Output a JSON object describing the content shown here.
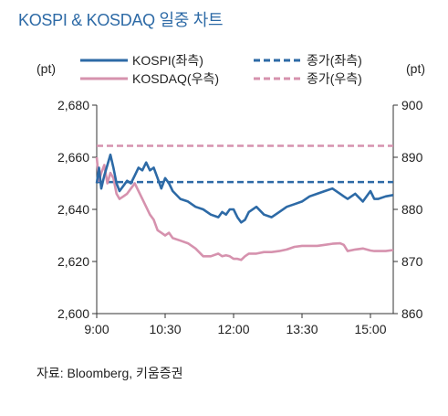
{
  "chart_data": {
    "type": "line",
    "title": "KOSPI & KOSDAQ 일중 차트",
    "left_axis": {
      "unit": "(pt)",
      "ticks": [
        "2,680",
        "2,660",
        "2,640",
        "2,620",
        "2,600"
      ],
      "ylim": [
        2600,
        2680
      ]
    },
    "right_axis": {
      "unit": "(pt)",
      "ticks": [
        "900",
        "890",
        "880",
        "870",
        "860"
      ],
      "ylim": [
        860,
        900
      ]
    },
    "x_ticks": [
      "9:00",
      "10:30",
      "12:00",
      "13:30",
      "15:00"
    ],
    "x_tick_values": [
      0,
      90,
      180,
      270,
      360
    ],
    "xlim": [
      0,
      390
    ],
    "legend": {
      "kospi": "KOSPI(좌측)",
      "kosdaq": "KOSDAQ(우측)",
      "kospi_close": "종가(좌측)",
      "kosdaq_close": "종가(우측)"
    },
    "colors": {
      "kospi": "#2d6aa6",
      "kosdaq": "#d692ae"
    },
    "series": [
      {
        "name": "KOSPI(좌측)",
        "axis": "left",
        "x": [
          0,
          3,
          6,
          10,
          14,
          18,
          22,
          26,
          30,
          35,
          40,
          45,
          50,
          55,
          60,
          65,
          70,
          75,
          80,
          85,
          90,
          95,
          100,
          110,
          120,
          130,
          140,
          150,
          160,
          165,
          170,
          175,
          180,
          185,
          190,
          195,
          200,
          210,
          220,
          230,
          240,
          250,
          260,
          270,
          280,
          290,
          300,
          310,
          320,
          325,
          330,
          340,
          350,
          360,
          365,
          370,
          380,
          390
        ],
        "values": [
          2650,
          2656,
          2648,
          2653,
          2657,
          2661,
          2656,
          2650,
          2647,
          2649,
          2651,
          2650,
          2653,
          2656,
          2655,
          2658,
          2655,
          2656,
          2652,
          2648,
          2652,
          2650,
          2647,
          2644,
          2643,
          2641,
          2640,
          2638,
          2637,
          2639,
          2638,
          2640,
          2640,
          2637,
          2635,
          2636,
          2639,
          2641,
          2638,
          2637,
          2639,
          2641,
          2642,
          2643,
          2645,
          2646,
          2647,
          2648,
          2646,
          2645,
          2644,
          2646,
          2643,
          2647,
          2644,
          2644,
          2645,
          2645.5
        ]
      },
      {
        "name": "KOSDAQ(우측)",
        "axis": "right",
        "x": [
          0,
          3,
          6,
          10,
          14,
          18,
          22,
          26,
          30,
          35,
          40,
          45,
          50,
          55,
          60,
          65,
          70,
          75,
          80,
          85,
          90,
          95,
          100,
          110,
          120,
          130,
          140,
          150,
          160,
          165,
          170,
          175,
          180,
          185,
          190,
          195,
          200,
          210,
          220,
          230,
          240,
          250,
          260,
          270,
          280,
          290,
          300,
          310,
          320,
          325,
          330,
          340,
          350,
          360,
          365,
          370,
          380,
          390
        ],
        "values": [
          890,
          885.5,
          887,
          888.5,
          885,
          887,
          886,
          883,
          882,
          882.5,
          883,
          884,
          885,
          883.5,
          882,
          880.5,
          879,
          878,
          876,
          875.5,
          875,
          875.5,
          874.5,
          874,
          873.5,
          872.5,
          871,
          871,
          871.5,
          871,
          871.2,
          871,
          870.5,
          870.5,
          870.3,
          871,
          871.5,
          871.5,
          871.8,
          871.8,
          872,
          872.3,
          872.8,
          873,
          873,
          873,
          873.2,
          873.4,
          873.5,
          873.2,
          872,
          872.3,
          872.5,
          872.1,
          872,
          872,
          872,
          872.2
        ]
      }
    ],
    "closes": [
      {
        "name": "종가(좌측)",
        "axis": "left",
        "value": 2650.5
      },
      {
        "name": "종가(우측)",
        "axis": "right",
        "value": 892.2
      }
    ]
  },
  "source_text": "자료: Bloomberg,  키움증권"
}
